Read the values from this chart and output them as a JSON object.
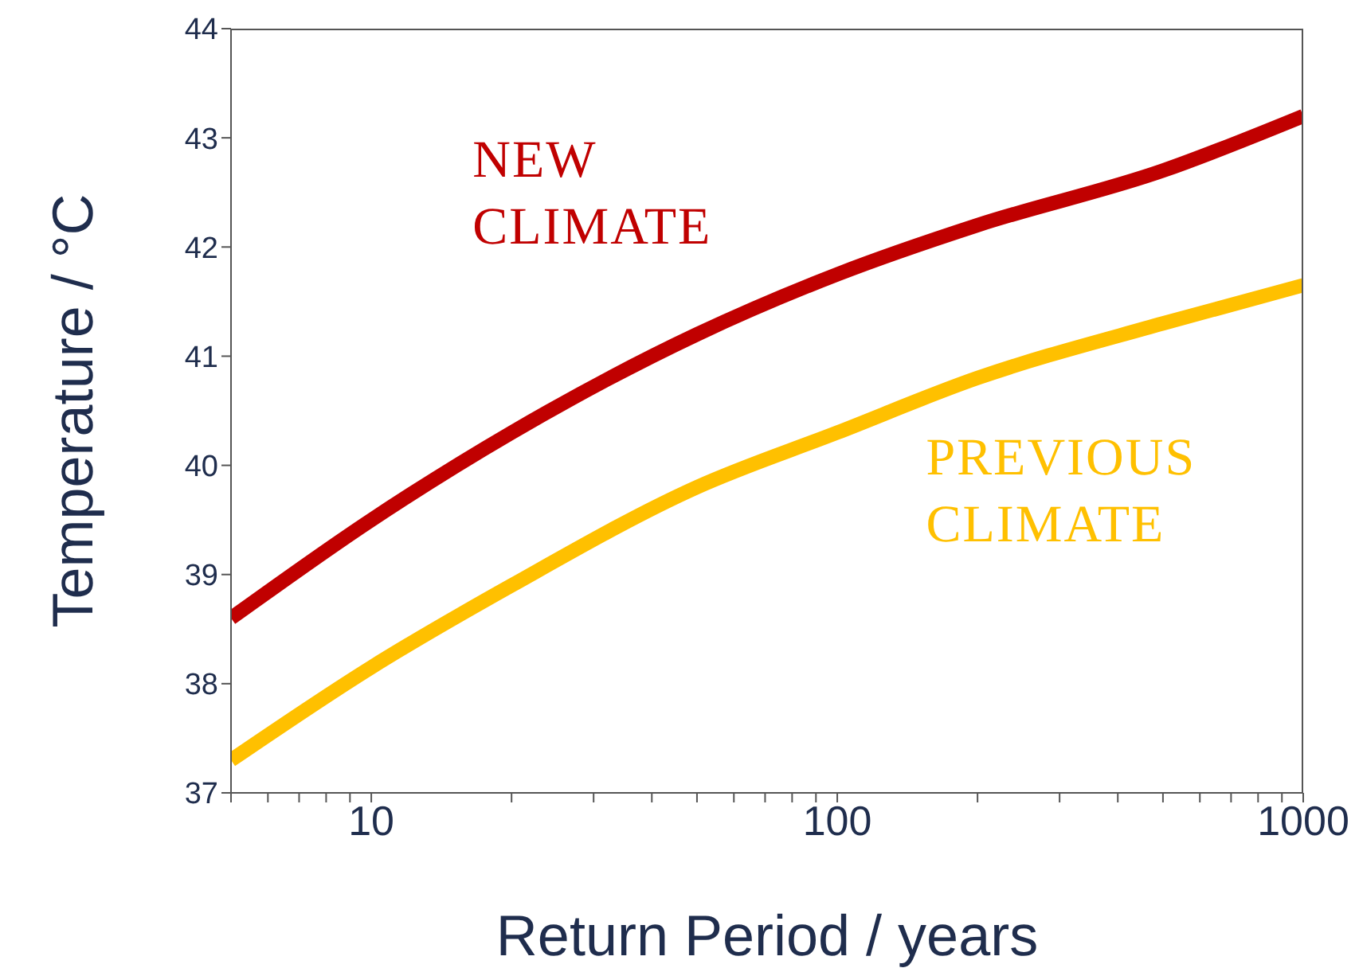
{
  "chart_data": {
    "type": "line",
    "xlabel": "Return Period / years",
    "ylabel": "Temperature / °C",
    "log": "x",
    "xlim": [
      5,
      1000
    ],
    "ylim": [
      37,
      44
    ],
    "xticks": [
      {
        "value": 5,
        "label": null
      },
      {
        "value": 6,
        "label": null
      },
      {
        "value": 7,
        "label": null
      },
      {
        "value": 8,
        "label": null
      },
      {
        "value": 9,
        "label": null
      },
      10,
      {
        "value": 20,
        "label": null
      },
      {
        "value": 30,
        "label": null
      },
      {
        "value": 40,
        "label": null
      },
      {
        "value": 50,
        "label": null
      },
      {
        "value": 60,
        "label": null
      },
      {
        "value": 70,
        "label": null
      },
      {
        "value": 80,
        "label": null
      },
      {
        "value": 90,
        "label": null
      },
      100,
      {
        "value": 200,
        "label": null
      },
      {
        "value": 300,
        "label": null
      },
      {
        "value": 400,
        "label": null
      },
      {
        "value": 500,
        "label": null
      },
      {
        "value": 600,
        "label": null
      },
      {
        "value": 700,
        "label": null
      },
      {
        "value": 800,
        "label": null
      },
      {
        "value": 900,
        "label": null
      },
      1000
    ],
    "yticks": [
      37,
      38,
      39,
      40,
      41,
      42,
      43,
      44
    ],
    "marker": "none",
    "line_style": "solid",
    "series": [
      {
        "name": "NEW CLIMATE",
        "color": "#c00000",
        "x": [
          5,
          10,
          20,
          50,
          100,
          200,
          500,
          1000
        ],
        "values": [
          38.6,
          39.5,
          40.3,
          41.2,
          41.75,
          42.2,
          42.7,
          43.2
        ]
      },
      {
        "name": "PREVIOUS CLIMATE",
        "color": "#ffc000",
        "x": [
          5,
          10,
          20,
          50,
          100,
          200,
          500,
          1000
        ],
        "values": [
          37.3,
          38.15,
          38.9,
          39.8,
          40.3,
          40.8,
          41.3,
          41.65
        ]
      }
    ]
  }
}
